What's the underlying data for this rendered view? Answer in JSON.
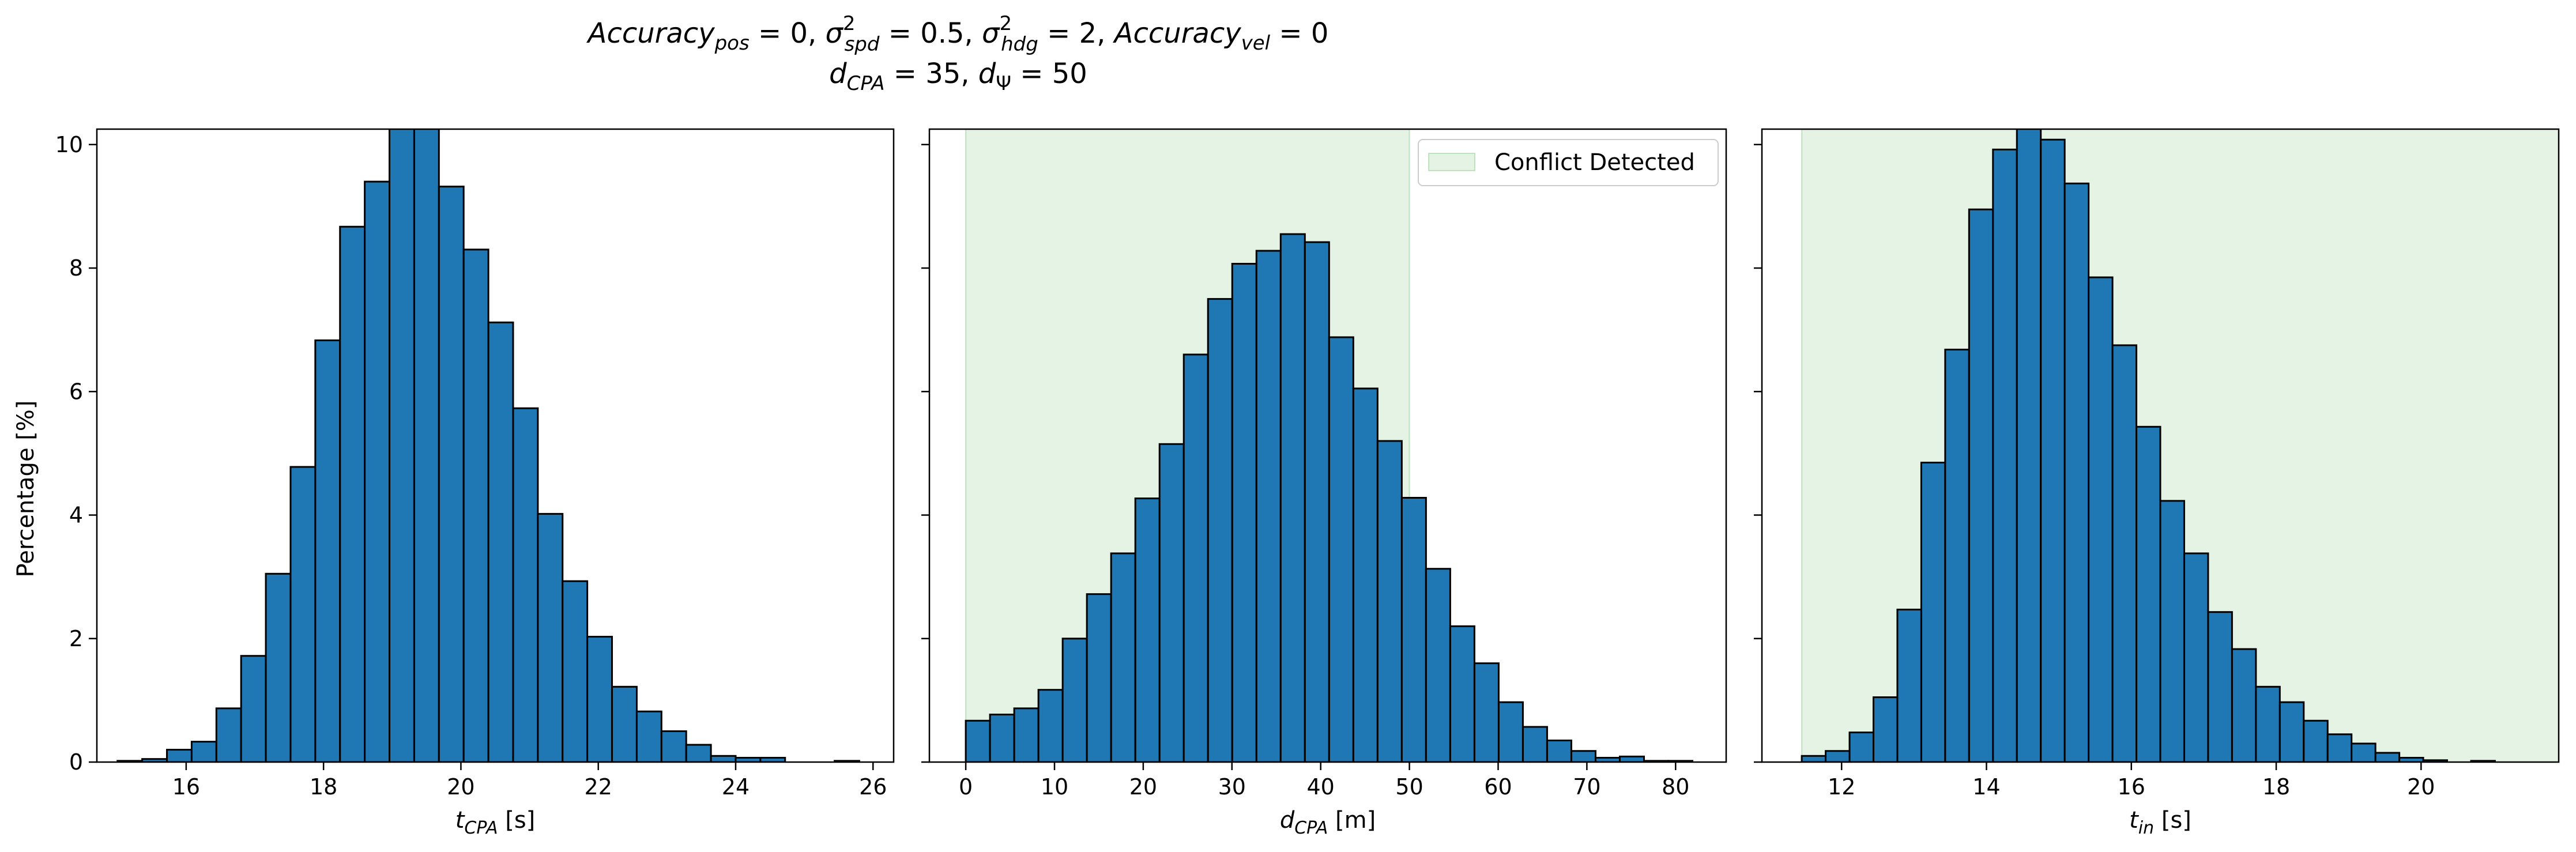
{
  "figure": {
    "title_line1": "Accuracy_pos = 0, σ²_spd = 0.5, σ²_hdg = 2, Accuracy_vel = 0",
    "title_line2": "d_CPA = 35, d_Ψ = 50",
    "ylabel": "Percentage [%]",
    "y_ticks": [
      "0",
      "2",
      "4",
      "6",
      "8",
      "10"
    ]
  },
  "colors": {
    "bar_fill": "#1f77b4",
    "bar_edge": "#000000",
    "shade": "#2ca02c"
  },
  "legend": {
    "label": "Conflict Detected",
    "location": "upper right"
  },
  "chart_data": [
    {
      "type": "bar",
      "title": "",
      "xlabel": "t_CPA [s]",
      "ylabel": "Percentage [%]",
      "xlim": [
        14.7,
        26.3
      ],
      "ylim": [
        0,
        10.25
      ],
      "x_ticks": [
        "16",
        "18",
        "20",
        "22",
        "24",
        "26"
      ],
      "bin_edges": [
        15.0,
        15.36,
        15.72,
        16.08,
        16.44,
        16.8,
        17.16,
        17.52,
        17.88,
        18.24,
        18.6,
        18.96,
        19.32,
        19.68,
        20.04,
        20.4,
        20.76,
        21.12,
        21.48,
        21.84,
        22.2,
        22.56,
        22.92,
        23.28,
        23.64,
        24.0,
        24.36,
        24.72,
        25.08,
        25.44,
        25.8
      ],
      "values": [
        0.02,
        0.05,
        0.2,
        0.33,
        0.87,
        1.72,
        3.05,
        4.78,
        6.83,
        8.67,
        9.4,
        10.3,
        10.3,
        9.32,
        8.3,
        7.12,
        5.73,
        4.02,
        2.93,
        2.03,
        1.22,
        0.82,
        0.5,
        0.28,
        0.1,
        0.07,
        0.07,
        0.0,
        0.0,
        0.02
      ],
      "shade": null
    },
    {
      "type": "bar",
      "title": "",
      "xlabel": "d_CPA [m]",
      "ylabel": "",
      "xlim": [
        -4.1,
        85.7
      ],
      "ylim": [
        0,
        10.25
      ],
      "x_ticks": [
        "0",
        "10",
        "20",
        "30",
        "40",
        "50",
        "60",
        "70",
        "80"
      ],
      "bin_edges": [
        0.0,
        2.73,
        5.46,
        8.19,
        10.92,
        13.65,
        16.38,
        19.11,
        21.84,
        24.57,
        27.3,
        30.03,
        32.76,
        35.49,
        38.22,
        40.95,
        43.68,
        46.41,
        49.14,
        51.87,
        54.6,
        57.33,
        60.06,
        62.79,
        65.52,
        68.25,
        70.98,
        73.71,
        76.44,
        79.17,
        81.9
      ],
      "values": [
        0.67,
        0.77,
        0.87,
        1.17,
        2.0,
        2.72,
        3.38,
        4.27,
        5.15,
        6.6,
        7.5,
        8.07,
        8.28,
        8.55,
        8.42,
        6.88,
        6.05,
        5.2,
        4.28,
        3.13,
        2.2,
        1.6,
        0.97,
        0.57,
        0.35,
        0.18,
        0.07,
        0.09,
        0.02,
        0.02
      ],
      "shade": [
        0,
        50
      ]
    },
    {
      "type": "bar",
      "title": "",
      "xlabel": "t_in [s]",
      "ylabel": "",
      "xlim": [
        10.9,
        21.9
      ],
      "ylim": [
        0,
        10.25
      ],
      "x_ticks": [
        "12",
        "14",
        "16",
        "18",
        "20"
      ],
      "bin_edges": [
        11.45,
        11.78,
        12.11,
        12.44,
        12.77,
        13.1,
        13.43,
        13.76,
        14.09,
        14.42,
        14.75,
        15.08,
        15.41,
        15.74,
        16.07,
        16.4,
        16.73,
        17.06,
        17.39,
        17.72,
        18.05,
        18.38,
        18.71,
        19.04,
        19.37,
        19.7,
        20.03,
        20.36,
        20.69,
        21.02,
        21.35
      ],
      "values": [
        0.1,
        0.18,
        0.48,
        1.05,
        2.47,
        4.85,
        6.68,
        8.95,
        9.92,
        10.28,
        10.08,
        9.37,
        7.85,
        6.75,
        5.43,
        4.23,
        3.38,
        2.43,
        1.83,
        1.22,
        0.97,
        0.67,
        0.45,
        0.3,
        0.15,
        0.07,
        0.03,
        0.0,
        0.02,
        0.0
      ],
      "shade": [
        11.45,
        21.9
      ]
    }
  ]
}
